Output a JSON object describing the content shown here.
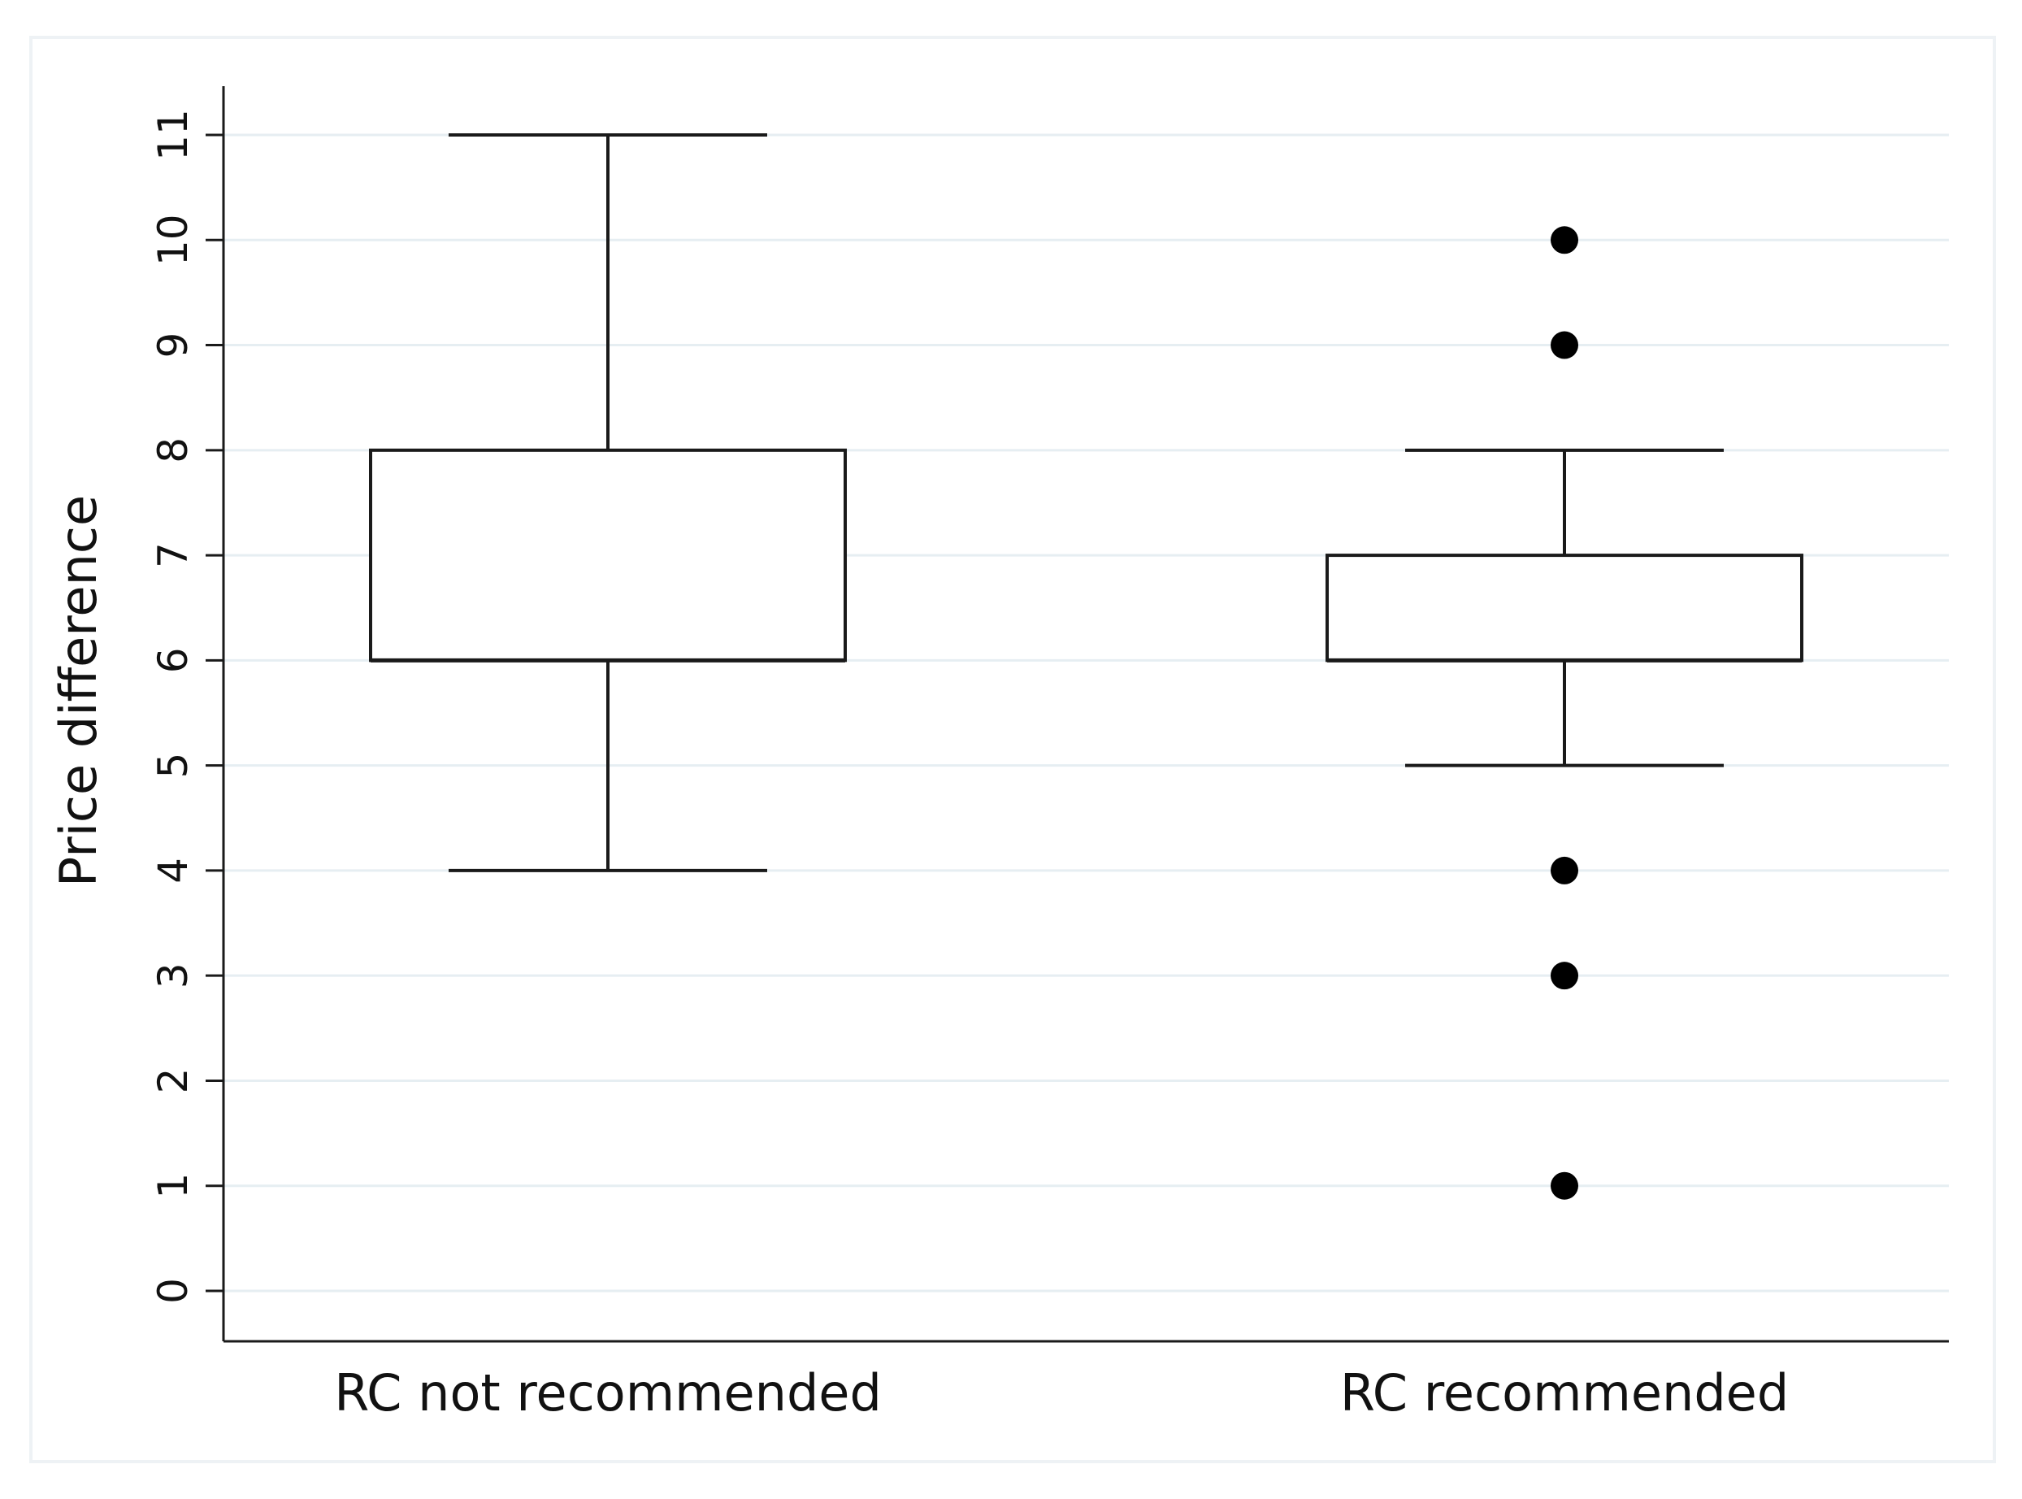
{
  "chart_data": {
    "type": "boxplot",
    "title": "",
    "xlabel": "",
    "ylabel": "Price difference",
    "ylim": [
      0,
      11
    ],
    "yticks": [
      "0",
      "1",
      "2",
      "3",
      "4",
      "5",
      "6",
      "7",
      "8",
      "9",
      "10",
      "11"
    ],
    "grid": true,
    "categories": [
      "RC not recommended",
      "RC recommended"
    ],
    "boxes": [
      {
        "category": "RC not recommended",
        "whisker_low": 4,
        "q1": 6,
        "median": 6,
        "q3": 8,
        "whisker_high": 11,
        "outliers": []
      },
      {
        "category": "RC recommended",
        "whisker_low": 5,
        "q1": 6,
        "median": 6,
        "q3": 7,
        "whisker_high": 8,
        "outliers": [
          10,
          9,
          4,
          3,
          1
        ]
      }
    ],
    "colors": {
      "grid": "#e6eef2",
      "box_stroke": "#1a1a1a",
      "outlier": "#000000",
      "frame": "#eef2f5"
    }
  }
}
